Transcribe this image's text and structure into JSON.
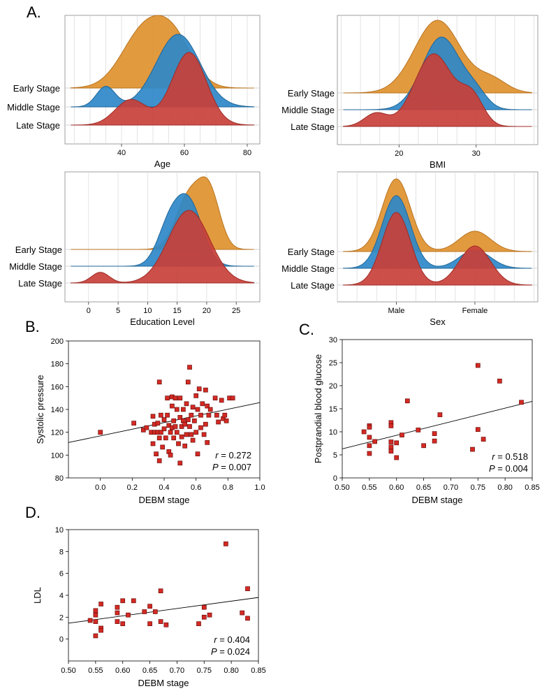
{
  "panel_labels": {
    "a": "A.",
    "b": "B.",
    "c": "C.",
    "d": "D."
  },
  "colors": {
    "early": "#E0912F",
    "middle": "#2E88C8",
    "late": "#C8403A",
    "point": "#D42A24"
  },
  "chart_data": [
    {
      "id": "age",
      "type": "area",
      "subtype": "ridgeline",
      "xlabel": "Age",
      "xlim": [
        22,
        84
      ],
      "ticks": [
        40,
        60,
        80
      ],
      "categories": [
        "Early Stage",
        "Middle Stage",
        "Late Stage"
      ],
      "series": [
        {
          "name": "Early Stage",
          "modes": [
            [
              47,
              7,
              1.0
            ],
            [
              57,
              6,
              0.75
            ]
          ]
        },
        {
          "name": "Middle Stage",
          "modes": [
            [
              35,
              3,
              0.28
            ],
            [
              58,
              7,
              1.0
            ]
          ]
        },
        {
          "name": "Late Stage",
          "modes": [
            [
              43,
              5,
              0.35
            ],
            [
              61.5,
              5.5,
              1.0
            ]
          ]
        }
      ]
    },
    {
      "id": "bmi",
      "type": "area",
      "subtype": "ridgeline",
      "xlabel": "BMI",
      "xlim": [
        12,
        38
      ],
      "ticks": [
        20,
        30
      ],
      "categories": [
        "Early Stage",
        "Middle Stage",
        "Late Stage"
      ],
      "series": [
        {
          "name": "Early Stage",
          "modes": [
            [
              25,
              3,
              1.0
            ],
            [
              32,
              2,
              0.18
            ]
          ]
        },
        {
          "name": "Middle Stage",
          "modes": [
            [
              25.5,
              2.5,
              1.0
            ],
            [
              30,
              1.5,
              0.18
            ]
          ]
        },
        {
          "name": "Late Stage",
          "modes": [
            [
              17,
              1.5,
              0.18
            ],
            [
              24.5,
              2.5,
              1.0
            ],
            [
              29.5,
              1.5,
              0.38
            ]
          ]
        }
      ]
    },
    {
      "id": "education",
      "type": "area",
      "subtype": "ridgeline",
      "xlabel": "Education Level",
      "xlim": [
        -4,
        29
      ],
      "ticks": [
        0,
        5,
        10,
        15,
        20,
        25
      ],
      "categories": [
        "Early Stage",
        "Middle Stage",
        "Late Stage"
      ],
      "series": [
        {
          "name": "Early Stage",
          "modes": [
            [
              17,
              2.2,
              1.0
            ],
            [
              20.5,
              1.8,
              1.0
            ]
          ]
        },
        {
          "name": "Middle Stage",
          "modes": [
            [
              13.5,
              2.0,
              0.55
            ],
            [
              17,
              2.3,
              1.0
            ]
          ]
        },
        {
          "name": "Late Stage",
          "modes": [
            [
              2,
              1.5,
              0.1
            ],
            [
              17,
              3.5,
              0.68
            ]
          ]
        }
      ]
    },
    {
      "id": "sex",
      "type": "area",
      "subtype": "ridgeline",
      "xlabel": "Sex",
      "xlim": [
        0.25,
        2.8
      ],
      "ticks": [
        1,
        2
      ],
      "tick_labels": [
        "Male",
        "Female"
      ],
      "categories": [
        "Early Stage",
        "Middle Stage",
        "Late Stage"
      ],
      "series": [
        {
          "name": "Early Stage",
          "modes": [
            [
              1,
              0.18,
              1.0
            ],
            [
              2,
              0.2,
              0.28
            ]
          ]
        },
        {
          "name": "Middle Stage",
          "modes": [
            [
              1,
              0.18,
              1.0
            ],
            [
              2,
              0.2,
              0.25
            ]
          ]
        },
        {
          "name": "Late Stage",
          "modes": [
            [
              1,
              0.18,
              0.78
            ],
            [
              2,
              0.2,
              0.42
            ]
          ]
        }
      ]
    },
    {
      "id": "sbp",
      "type": "scatter",
      "xlabel": "DEBM stage",
      "ylabel": "Systolic pressure",
      "xlim": [
        -0.2,
        1.0
      ],
      "ylim": [
        80,
        200
      ],
      "xticks": [
        0.0,
        0.2,
        0.4,
        0.6,
        0.8,
        1.0
      ],
      "yticks": [
        80,
        100,
        120,
        140,
        160,
        180,
        200
      ],
      "xtick_labels": [
        "0.0",
        "0.2",
        "0.4",
        "0.6",
        "0.8",
        "1.0"
      ],
      "fit": [
        [
          -0.2,
          111
        ],
        [
          1.0,
          146
        ]
      ],
      "r_label": "r",
      "r_value": "= 0.272",
      "p_label": "P",
      "p_value": "= 0.007",
      "points": [
        [
          0,
          120
        ],
        [
          0.21,
          128
        ],
        [
          0.27,
          122
        ],
        [
          0.29,
          124
        ],
        [
          0.32,
          120
        ],
        [
          0.33,
          134
        ],
        [
          0.33,
          110
        ],
        [
          0.34,
          127
        ],
        [
          0.34,
          120
        ],
        [
          0.35,
          101
        ],
        [
          0.36,
          128
        ],
        [
          0.36,
          120
        ],
        [
          0.37,
          164
        ],
        [
          0.37,
          95
        ],
        [
          0.37,
          115
        ],
        [
          0.38,
          135
        ],
        [
          0.38,
          120
        ],
        [
          0.39,
          107
        ],
        [
          0.4,
          123
        ],
        [
          0.4,
          131
        ],
        [
          0.41,
          115
        ],
        [
          0.42,
          150
        ],
        [
          0.42,
          135
        ],
        [
          0.43,
          126
        ],
        [
          0.43,
          103
        ],
        [
          0.44,
          100
        ],
        [
          0.44,
          120
        ],
        [
          0.45,
          151
        ],
        [
          0.45,
          143
        ],
        [
          0.45,
          124
        ],
        [
          0.46,
          130
        ],
        [
          0.46,
          115
        ],
        [
          0.47,
          150
        ],
        [
          0.47,
          125
        ],
        [
          0.48,
          140
        ],
        [
          0.48,
          120
        ],
        [
          0.49,
          110
        ],
        [
          0.5,
          93
        ],
        [
          0.5,
          150
        ],
        [
          0.5,
          133
        ],
        [
          0.51,
          125
        ],
        [
          0.51,
          116
        ],
        [
          0.52,
          140
        ],
        [
          0.52,
          130
        ],
        [
          0.53,
          108
        ],
        [
          0.53,
          127
        ],
        [
          0.54,
          118
        ],
        [
          0.54,
          145
        ],
        [
          0.55,
          164
        ],
        [
          0.55,
          131
        ],
        [
          0.56,
          177
        ],
        [
          0.56,
          125
        ],
        [
          0.57,
          135
        ],
        [
          0.57,
          118
        ],
        [
          0.58,
          142
        ],
        [
          0.58,
          113
        ],
        [
          0.59,
          130
        ],
        [
          0.6,
          152
        ],
        [
          0.6,
          120
        ],
        [
          0.61,
          101
        ],
        [
          0.61,
          140
        ],
        [
          0.62,
          158
        ],
        [
          0.63,
          135
        ],
        [
          0.63,
          124
        ],
        [
          0.64,
          145
        ],
        [
          0.65,
          118
        ],
        [
          0.66,
          157
        ],
        [
          0.66,
          127
        ],
        [
          0.67,
          111
        ],
        [
          0.67,
          143
        ],
        [
          0.68,
          135
        ],
        [
          0.69,
          140
        ],
        [
          0.72,
          150
        ],
        [
          0.73,
          135
        ],
        [
          0.74,
          129
        ],
        [
          0.76,
          148
        ],
        [
          0.77,
          132
        ],
        [
          0.78,
          135
        ],
        [
          0.79,
          130
        ],
        [
          0.81,
          150
        ],
        [
          0.83,
          150
        ]
      ]
    },
    {
      "id": "ppbg",
      "type": "scatter",
      "xlabel": "DEBM stage",
      "ylabel": "Postprandial blood glucose",
      "xlim": [
        0.5,
        0.85
      ],
      "ylim": [
        0,
        30
      ],
      "xticks": [
        0.5,
        0.55,
        0.6,
        0.65,
        0.7,
        0.75,
        0.8,
        0.85
      ],
      "yticks": [
        0,
        5,
        10,
        15,
        20,
        25,
        30
      ],
      "xtick_labels": [
        "0.50",
        "0.55",
        "0.60",
        "0.65",
        "0.70",
        "0.75",
        "0.80",
        "0.85"
      ],
      "fit": [
        [
          0.5,
          6.3
        ],
        [
          0.85,
          16.6
        ]
      ],
      "r_label": "r",
      "r_value": "= 0.518",
      "p_label": "P",
      "p_value": "= 0.004",
      "points": [
        [
          0.54,
          10
        ],
        [
          0.55,
          11.3
        ],
        [
          0.55,
          11
        ],
        [
          0.55,
          8.8
        ],
        [
          0.55,
          7
        ],
        [
          0.55,
          5.3
        ],
        [
          0.56,
          7.9
        ],
        [
          0.59,
          12
        ],
        [
          0.59,
          11.3
        ],
        [
          0.59,
          7.8
        ],
        [
          0.59,
          6.7
        ],
        [
          0.59,
          5.8
        ],
        [
          0.6,
          7.6
        ],
        [
          0.6,
          4.4
        ],
        [
          0.61,
          9.3
        ],
        [
          0.62,
          16.7
        ],
        [
          0.64,
          10.4
        ],
        [
          0.65,
          7
        ],
        [
          0.67,
          9.6
        ],
        [
          0.67,
          8
        ],
        [
          0.68,
          13.7
        ],
        [
          0.74,
          6.2
        ],
        [
          0.75,
          24.4
        ],
        [
          0.75,
          10.5
        ],
        [
          0.76,
          8.4
        ],
        [
          0.79,
          21
        ],
        [
          0.83,
          16.4
        ]
      ]
    },
    {
      "id": "ldl",
      "type": "scatter",
      "xlabel": "DEBM stage",
      "ylabel": "LDL",
      "xlim": [
        0.5,
        0.85
      ],
      "ylim": [
        -2,
        10
      ],
      "xticks": [
        0.5,
        0.55,
        0.6,
        0.65,
        0.7,
        0.75,
        0.8,
        0.85
      ],
      "yticks": [
        0,
        2,
        4,
        6,
        8,
        10
      ],
      "xtick_labels": [
        "0.50",
        "0.55",
        "0.60",
        "0.65",
        "0.70",
        "0.75",
        "0.80",
        "0.85"
      ],
      "fit": [
        [
          0.5,
          1.45
        ],
        [
          0.85,
          3.8
        ]
      ],
      "r_label": "r",
      "r_value": "= 0.404",
      "p_label": "P",
      "p_value": "= 0.024",
      "points": [
        [
          0.54,
          1.7
        ],
        [
          0.55,
          2.6
        ],
        [
          0.55,
          2.2
        ],
        [
          0.55,
          1.6
        ],
        [
          0.55,
          0.3
        ],
        [
          0.56,
          3.2
        ],
        [
          0.56,
          1.0
        ],
        [
          0.56,
          0.8
        ],
        [
          0.59,
          2.9
        ],
        [
          0.59,
          2.4
        ],
        [
          0.59,
          1.6
        ],
        [
          0.6,
          3.5
        ],
        [
          0.6,
          1.4
        ],
        [
          0.61,
          2.2
        ],
        [
          0.62,
          3.5
        ],
        [
          0.64,
          2.5
        ],
        [
          0.65,
          3.0
        ],
        [
          0.65,
          1.4
        ],
        [
          0.66,
          2.5
        ],
        [
          0.67,
          4.4
        ],
        [
          0.67,
          1.6
        ],
        [
          0.68,
          1.3
        ],
        [
          0.74,
          1.4
        ],
        [
          0.75,
          2.9
        ],
        [
          0.75,
          2.0
        ],
        [
          0.76,
          2.2
        ],
        [
          0.79,
          8.7
        ],
        [
          0.82,
          2.4
        ],
        [
          0.83,
          4.6
        ],
        [
          0.83,
          1.9
        ]
      ]
    }
  ]
}
